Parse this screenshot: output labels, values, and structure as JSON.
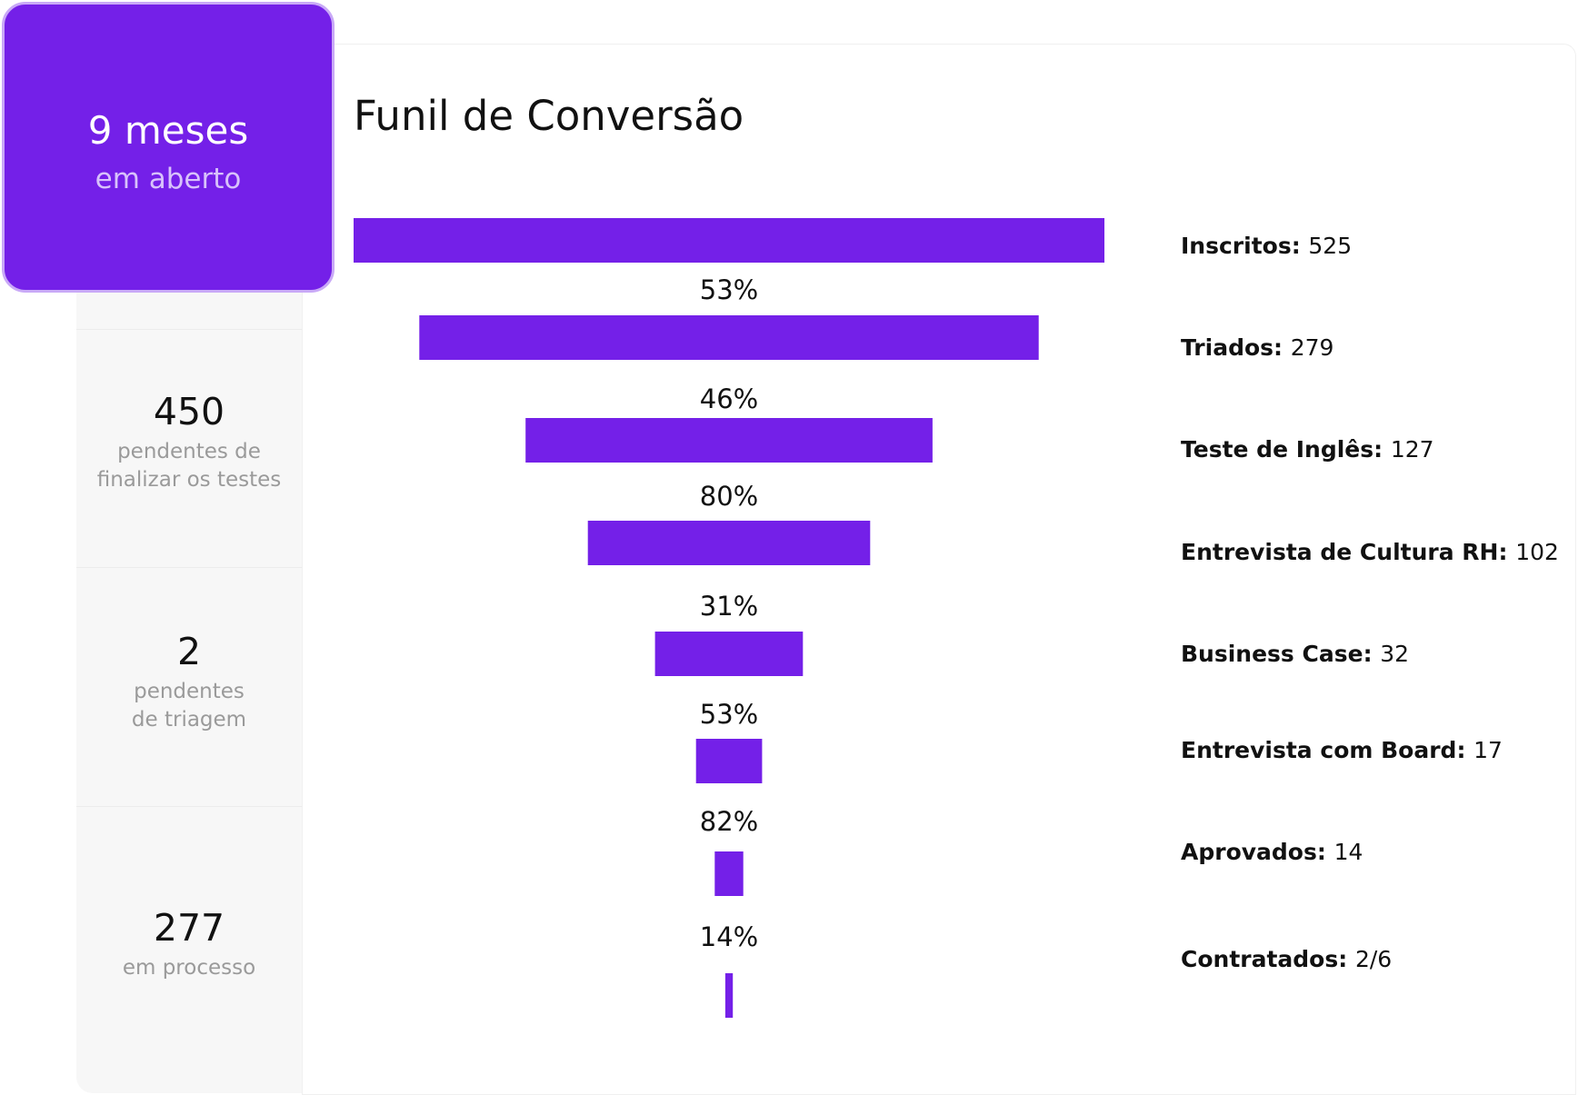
{
  "highlight": {
    "value": "9 meses",
    "label": "em aberto"
  },
  "stats": [
    {
      "value": "450",
      "label_lines": [
        "pendentes de",
        "finalizar os testes"
      ]
    },
    {
      "value": "2",
      "label_lines": [
        "pendentes",
        "de triagem"
      ]
    },
    {
      "value": "277",
      "label_lines": [
        "em processo"
      ]
    }
  ],
  "colors": {
    "accent": "#7420e8",
    "accent_border": "#c9a9f7",
    "text": "#111111",
    "muted": "#9a9a9a",
    "panel": "#f7f7f7"
  },
  "chart_data": {
    "type": "bar",
    "title": "Funil de Conversão",
    "stages": [
      {
        "name": "Inscritos",
        "value": 525,
        "value_label": "525"
      },
      {
        "name": "Triados",
        "value": 279,
        "value_label": "279"
      },
      {
        "name": "Teste de Inglês",
        "value": 127,
        "value_label": "127"
      },
      {
        "name": "Entrevista de Cultura RH",
        "value": 102,
        "value_label": "102"
      },
      {
        "name": "Business Case",
        "value": 32,
        "value_label": "32"
      },
      {
        "name": "Entrevista com Board",
        "value": 17,
        "value_label": "17"
      },
      {
        "name": "Aprovados",
        "value": 14,
        "value_label": "14"
      },
      {
        "name": "Contratados",
        "value": 2,
        "value_label": "2/6"
      }
    ],
    "conversion_rates": [
      "53%",
      "46%",
      "80%",
      "31%",
      "53%",
      "82%",
      "14%"
    ],
    "bar_widths_relative": [
      1.0,
      0.825,
      0.542,
      0.376,
      0.197,
      0.088,
      0.038,
      0.01
    ]
  }
}
